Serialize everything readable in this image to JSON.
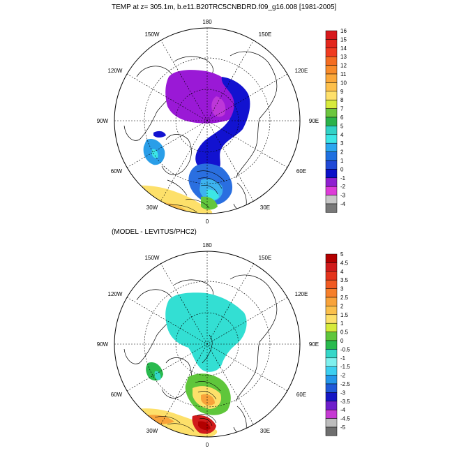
{
  "panels": [
    {
      "id": "top",
      "title": "TEMP at z= 305.1m, b.e11.B20TRC5CNBDRD.f09_g16.008 [1981-2005]",
      "lon_labels": [
        "180",
        "150E",
        "120E",
        "90E",
        "60E",
        "30E",
        "0",
        "30W",
        "60W",
        "90W",
        "120W",
        "150W"
      ],
      "colorbar": {
        "labels": [
          "16",
          "15",
          "14",
          "13",
          "12",
          "11",
          "10",
          "9",
          "8",
          "7",
          "6",
          "5",
          "4",
          "3",
          "2",
          "1",
          "0",
          "-1",
          "-2",
          "-3",
          "-4"
        ],
        "colors": [
          "#d7191c",
          "#e3261c",
          "#f03b20",
          "#f46d22",
          "#f88b2a",
          "#fba83a",
          "#fdc04c",
          "#fee06b",
          "#d7ea3c",
          "#6cc63e",
          "#2bb24a",
          "#32d2c6",
          "#3ce6e6",
          "#2ba6ef",
          "#1f70e0",
          "#2149d6",
          "#0a10c8",
          "#8f1fd0",
          "#dd3cd8",
          "#c8c8c8",
          "#787878"
        ]
      }
    },
    {
      "id": "bottom",
      "title": "(MODEL - LEVITUS/PHC2)",
      "lon_labels": [
        "180",
        "150E",
        "120E",
        "90E",
        "60E",
        "30E",
        "0",
        "30W",
        "60W",
        "90W",
        "120W",
        "150W"
      ],
      "colorbar": {
        "labels": [
          "5",
          "4.5",
          "4",
          "3.5",
          "3",
          "2.5",
          "2",
          "1.5",
          "1",
          "0.5",
          "0",
          "-0.5",
          "-1",
          "-1.5",
          "-2",
          "-2.5",
          "-3",
          "-3.5",
          "-4",
          "-4.5",
          "-5"
        ],
        "colors": [
          "#b30000",
          "#d01b1b",
          "#e4341c",
          "#f05a22",
          "#f67f2a",
          "#f8a33a",
          "#fbc04c",
          "#fde06a",
          "#d6ea3a",
          "#5fc63b",
          "#29ba4e",
          "#34d7c8",
          "#7ff0ee",
          "#3ccff0",
          "#2497ea",
          "#1f59d8",
          "#1516c4",
          "#6e1ecb",
          "#c63ad3",
          "#bdbdbd",
          "#6e6e6e"
        ]
      }
    }
  ]
}
